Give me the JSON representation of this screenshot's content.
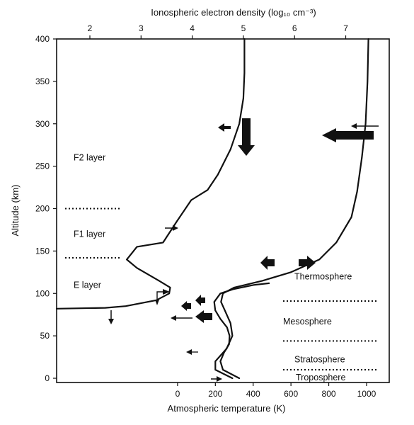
{
  "chart_data": {
    "type": "line",
    "top_axis": {
      "title": "Ionospheric electron density (log₁₀ cm⁻³)",
      "ticks": [
        2,
        3,
        4,
        5,
        6,
        7
      ],
      "lim": [
        1.35,
        7.85
      ]
    },
    "bottom_axis": {
      "title": "Atmospheric temperature (K)",
      "ticks": [
        0,
        200,
        400,
        600,
        800,
        1000
      ],
      "lim": [
        -640,
        1120
      ]
    },
    "left_axis": {
      "title": "Altitude (km)",
      "ticks": [
        0,
        50,
        100,
        150,
        200,
        250,
        300,
        350,
        400
      ],
      "lim": [
        -5,
        400
      ]
    },
    "series": [
      {
        "axis": "top",
        "points": [
          [
            4.92,
            0
          ],
          [
            4.6,
            10
          ],
          [
            4.55,
            20
          ],
          [
            4.62,
            30
          ],
          [
            4.72,
            40
          ],
          [
            4.73,
            50
          ],
          [
            4.68,
            60
          ],
          [
            4.55,
            70
          ],
          [
            4.45,
            80
          ],
          [
            4.43,
            90
          ],
          [
            4.55,
            100
          ],
          [
            4.8,
            105
          ],
          [
            5.2,
            110
          ],
          [
            5.5,
            112
          ]
        ],
        "note": "kinked ionosphere curve drawn as temperature-scale trace"
      },
      {
        "axis": "top",
        "points": [
          [
            1.35,
            82
          ],
          [
            2.3,
            83
          ],
          [
            2.7,
            85
          ],
          [
            3.3,
            92
          ],
          [
            3.55,
            100
          ],
          [
            3.57,
            107
          ],
          [
            3.35,
            115
          ],
          [
            2.92,
            130
          ],
          [
            2.72,
            140
          ],
          [
            2.92,
            155
          ],
          [
            3.43,
            160
          ],
          [
            3.7,
            185
          ],
          [
            3.98,
            210
          ],
          [
            4.3,
            222
          ],
          [
            4.5,
            240
          ],
          [
            4.75,
            270
          ],
          [
            4.92,
            300
          ],
          [
            5.0,
            330
          ],
          [
            5.02,
            360
          ],
          [
            5.02,
            400
          ]
        ]
      },
      {
        "axis": "bottom",
        "points": [
          [
            290,
            0
          ],
          [
            200,
            10
          ],
          [
            200,
            20
          ],
          [
            260,
            35
          ],
          [
            290,
            50
          ],
          [
            280,
            65
          ],
          [
            250,
            80
          ],
          [
            230,
            90
          ],
          [
            240,
            100
          ],
          [
            300,
            107
          ],
          [
            450,
            115
          ],
          [
            600,
            125
          ],
          [
            750,
            140
          ],
          [
            840,
            160
          ],
          [
            920,
            190
          ],
          [
            950,
            220
          ],
          [
            975,
            260
          ],
          [
            995,
            300
          ],
          [
            1005,
            350
          ],
          [
            1010,
            400
          ]
        ]
      }
    ],
    "regions": [
      {
        "label": "F2 layer",
        "y": 260
      },
      {
        "label": "F1 layer",
        "y": 170
      },
      {
        "label": "E layer",
        "y": 110
      },
      {
        "label": "Thermosphere",
        "y": 120
      },
      {
        "label": "Mesosphere",
        "y": 67
      },
      {
        "label": "Stratosphere",
        "y": 22
      },
      {
        "label": "Troposphere",
        "y": 1
      }
    ],
    "dotted_boundaries": [
      {
        "y": 200,
        "side": "left"
      },
      {
        "y": 142,
        "side": "left"
      },
      {
        "y": 91,
        "side": "right"
      },
      {
        "y": 44,
        "side": "right"
      },
      {
        "y": 10,
        "side": "right"
      }
    ]
  }
}
